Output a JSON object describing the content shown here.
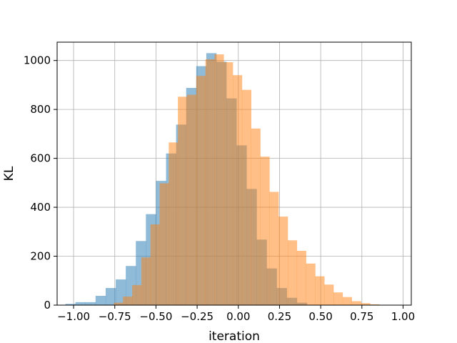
{
  "chart_data": {
    "type": "bar",
    "subtype": "overlapping-histogram",
    "title": "",
    "xlabel": "iteration",
    "ylabel": "KL",
    "xlim": [
      -1.1,
      1.05
    ],
    "ylim": [
      0,
      1075
    ],
    "grid": true,
    "legend": "none",
    "x_ticks": [
      -1.0,
      -0.75,
      -0.5,
      -0.25,
      0.0,
      0.25,
      0.5,
      0.75,
      1.0
    ],
    "x_tick_labels": [
      "−1.00",
      "−0.75",
      "−0.50",
      "−0.25",
      "0.00",
      "0.25",
      "0.50",
      "0.75",
      "1.00"
    ],
    "y_ticks": [
      0,
      200,
      400,
      600,
      800,
      1000
    ],
    "y_tick_labels": [
      "0",
      "200",
      "400",
      "600",
      "800",
      "1000"
    ],
    "series": [
      {
        "color": "#1f77b4",
        "opacity": 0.5,
        "bin_edges": [
          -1.05,
          -0.9889,
          -0.9278,
          -0.8667,
          -0.8056,
          -0.7444,
          -0.6833,
          -0.6222,
          -0.5611,
          -0.5,
          -0.4389,
          -0.3778,
          -0.3167,
          -0.2556,
          -0.1944,
          -0.1333,
          -0.0722,
          -0.0111,
          0.05,
          0.1111,
          0.1722,
          0.2333,
          0.2944,
          0.3556,
          0.4167
        ],
        "counts": [
          5,
          12,
          12,
          38,
          70,
          105,
          160,
          262,
          372,
          508,
          620,
          738,
          888,
          977,
          1030,
          995,
          845,
          653,
          475,
          268,
          150,
          70,
          30,
          10
        ]
      },
      {
        "color": "#ff7f0e",
        "opacity": 0.5,
        "bin_edges": [
          -0.7556,
          -0.7,
          -0.6444,
          -0.5889,
          -0.5333,
          -0.4778,
          -0.4222,
          -0.3667,
          -0.3111,
          -0.2556,
          -0.2,
          -0.1444,
          -0.0889,
          -0.0333,
          0.0222,
          0.0778,
          0.1333,
          0.1889,
          0.2444,
          0.3,
          0.3556,
          0.4111,
          0.4667,
          0.5222,
          0.5778,
          0.6333,
          0.6889,
          0.7444,
          0.8,
          0.8556,
          0.9111
        ],
        "counts": [
          10,
          35,
          82,
          195,
          330,
          498,
          665,
          852,
          860,
          937,
          1005,
          1025,
          993,
          940,
          880,
          722,
          607,
          463,
          362,
          265,
          222,
          170,
          118,
          84,
          52,
          33,
          16,
          8,
          3,
          1
        ]
      }
    ]
  }
}
